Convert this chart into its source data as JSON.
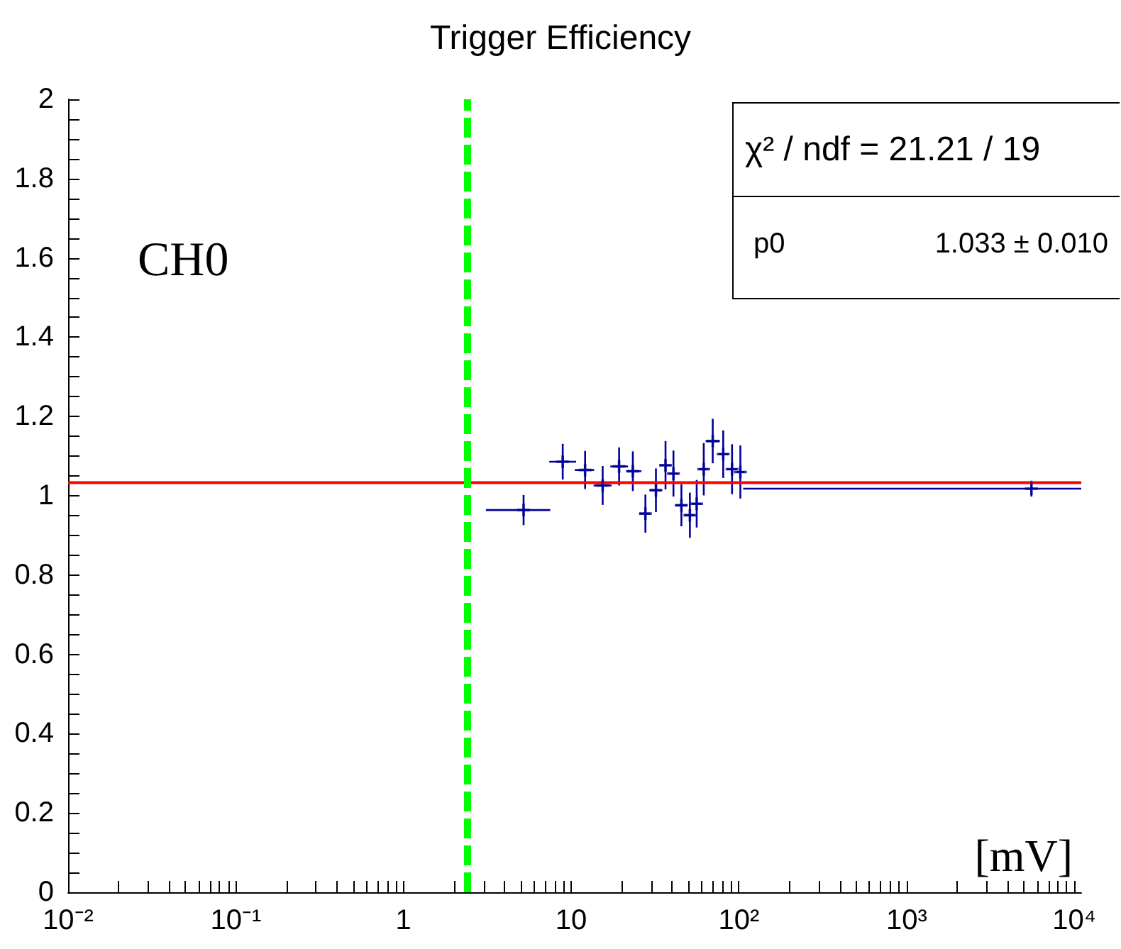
{
  "chart_data": {
    "type": "scatter",
    "title": "Trigger Efficiency",
    "xlabel": "[mV]",
    "annotations": [
      "CH0",
      "χ² / ndf = 21.21 / 19",
      "p0",
      "1.033 ± 0.010"
    ],
    "log": "x",
    "grid": false,
    "xlim": [
      0.01,
      11000
    ],
    "ylim": [
      0,
      2
    ],
    "xticks": [
      {
        "value": 0.01,
        "label": "10⁻²"
      },
      {
        "value": 0.02,
        "label": null
      },
      {
        "value": 0.03,
        "label": null
      },
      {
        "value": 0.04,
        "label": null
      },
      {
        "value": 0.05,
        "label": null
      },
      {
        "value": 0.06,
        "label": null
      },
      {
        "value": 0.07,
        "label": null
      },
      {
        "value": 0.08,
        "label": null
      },
      {
        "value": 0.09,
        "label": null
      },
      {
        "value": 0.1,
        "label": "10⁻¹"
      },
      {
        "value": 0.2,
        "label": null
      },
      {
        "value": 0.3,
        "label": null
      },
      {
        "value": 0.4,
        "label": null
      },
      {
        "value": 0.5,
        "label": null
      },
      {
        "value": 0.6,
        "label": null
      },
      {
        "value": 0.7,
        "label": null
      },
      {
        "value": 0.8,
        "label": null
      },
      {
        "value": 0.9,
        "label": null
      },
      1,
      {
        "value": 2,
        "label": null
      },
      {
        "value": 3,
        "label": null
      },
      {
        "value": 4,
        "label": null
      },
      {
        "value": 5,
        "label": null
      },
      {
        "value": 6,
        "label": null
      },
      {
        "value": 7,
        "label": null
      },
      {
        "value": 8,
        "label": null
      },
      {
        "value": 9,
        "label": null
      },
      10,
      {
        "value": 20,
        "label": null
      },
      {
        "value": 30,
        "label": null
      },
      {
        "value": 40,
        "label": null
      },
      {
        "value": 50,
        "label": null
      },
      {
        "value": 60,
        "label": null
      },
      {
        "value": 70,
        "label": null
      },
      {
        "value": 80,
        "label": null
      },
      {
        "value": 90,
        "label": null
      },
      {
        "value": 100,
        "label": "10²"
      },
      {
        "value": 200,
        "label": null
      },
      {
        "value": 300,
        "label": null
      },
      {
        "value": 400,
        "label": null
      },
      {
        "value": 500,
        "label": null
      },
      {
        "value": 600,
        "label": null
      },
      {
        "value": 700,
        "label": null
      },
      {
        "value": 800,
        "label": null
      },
      {
        "value": 900,
        "label": null
      },
      {
        "value": 1000,
        "label": "10³"
      },
      {
        "value": 2000,
        "label": null
      },
      {
        "value": 3000,
        "label": null
      },
      {
        "value": 4000,
        "label": null
      },
      {
        "value": 5000,
        "label": null
      },
      {
        "value": 6000,
        "label": null
      },
      {
        "value": 7000,
        "label": null
      },
      {
        "value": 8000,
        "label": null
      },
      {
        "value": 9000,
        "label": null
      },
      {
        "value": 10000,
        "label": "10⁴"
      }
    ],
    "yticks": [
      0,
      {
        "value": 0.05,
        "label": null
      },
      {
        "value": 0.1,
        "label": null
      },
      {
        "value": 0.15,
        "label": null
      },
      0.2,
      {
        "value": 0.25,
        "label": null
      },
      {
        "value": 0.3,
        "label": null
      },
      {
        "value": 0.35,
        "label": null
      },
      0.4,
      {
        "value": 0.45,
        "label": null
      },
      {
        "value": 0.5,
        "label": null
      },
      {
        "value": 0.55,
        "label": null
      },
      0.6,
      {
        "value": 0.65,
        "label": null
      },
      {
        "value": 0.7,
        "label": null
      },
      {
        "value": 0.75,
        "label": null
      },
      0.8,
      {
        "value": 0.85,
        "label": null
      },
      {
        "value": 0.9,
        "label": null
      },
      {
        "value": 0.95,
        "label": null
      },
      1,
      {
        "value": 1.05,
        "label": null
      },
      {
        "value": 1.1,
        "label": null
      },
      {
        "value": 1.15,
        "label": null
      },
      1.2,
      {
        "value": 1.25,
        "label": null
      },
      {
        "value": 1.3,
        "label": null
      },
      {
        "value": 1.35,
        "label": null
      },
      1.4,
      {
        "value": 1.45,
        "label": null
      },
      {
        "value": 1.5,
        "label": null
      },
      {
        "value": 1.55,
        "label": null
      },
      1.6,
      {
        "value": 1.65,
        "label": null
      },
      {
        "value": 1.7,
        "label": null
      },
      {
        "value": 1.75,
        "label": null
      },
      1.8,
      {
        "value": 1.85,
        "label": null
      },
      {
        "value": 1.9,
        "label": null
      },
      {
        "value": 1.95,
        "label": null
      },
      2
    ],
    "ref_lines": [
      {
        "axis": "x",
        "value": 2.4,
        "color": "#00ff00",
        "line_style": "dashed"
      }
    ],
    "series": [
      {
        "color": "#000099",
        "marker": "cross",
        "x": [
          5.2,
          8.9,
          12.1,
          15.4,
          19.3,
          23.3,
          27.7,
          32.0,
          36.5,
          40.7,
          45.4,
          51.0,
          56.0,
          61.7,
          69.8,
          80.6,
          91.0,
          102,
          5550
        ],
        "values": [
          0.964,
          1.086,
          1.065,
          1.026,
          1.074,
          1.062,
          0.955,
          1.014,
          1.077,
          1.056,
          0.976,
          0.951,
          0.98,
          1.067,
          1.138,
          1.105,
          1.067,
          1.06,
          1.018
        ],
        "errors": [
          0.038,
          0.045,
          0.048,
          0.049,
          0.048,
          0.05,
          0.048,
          0.055,
          0.061,
          0.058,
          0.053,
          0.057,
          0.06,
          0.066,
          0.056,
          0.06,
          0.063,
          0.067,
          0.02
        ],
        "xerrors": [
          [
            3.1,
            7.5
          ],
          [
            7.4,
            10.7
          ],
          [
            10.5,
            13.7
          ],
          [
            13.6,
            17.4
          ],
          [
            17.1,
            21.8
          ],
          [
            21.3,
            26.2
          ],
          [
            25.5,
            29.5
          ],
          [
            29.3,
            34.6
          ],
          [
            33.8,
            39.2
          ],
          [
            38.1,
            43.6
          ],
          [
            41.7,
            49.0
          ],
          [
            47.5,
            53.9
          ],
          [
            52.3,
            59.5
          ],
          [
            58.0,
            65.3
          ],
          [
            63.3,
            77.0
          ],
          [
            75.5,
            86.5
          ],
          [
            85.0,
            97.0
          ],
          [
            97,
            108
          ],
          [
            106,
            11000
          ]
        ]
      },
      {
        "type": "line",
        "color": "#ff0000",
        "x": [
          0.01,
          11000
        ],
        "values": [
          1.033,
          1.033
        ]
      }
    ]
  }
}
